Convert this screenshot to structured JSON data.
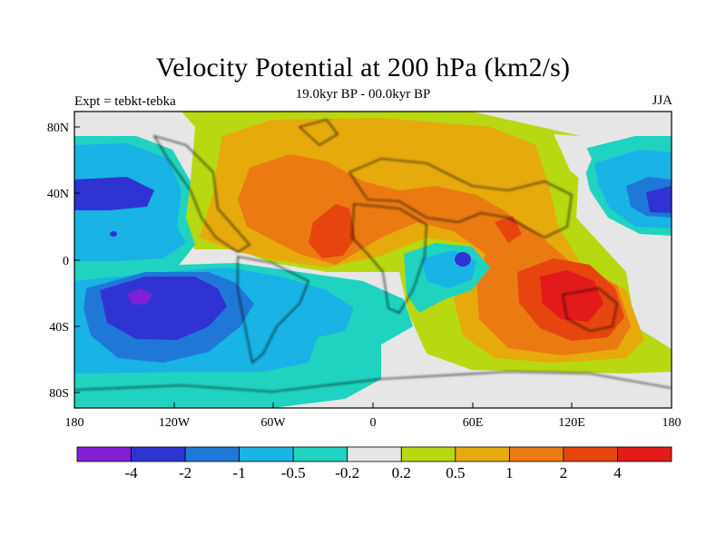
{
  "title": "Velocity Potential at 200 hPa (km2/s)",
  "subtitle_left": "Expt = tebkt-tebka",
  "subtitle_center": "19.0kyr BP - 00.0kyr BP",
  "subtitle_right": "JJA",
  "lat_labels": [
    "80N",
    "40N",
    "0",
    "40S",
    "80S"
  ],
  "lon_labels": [
    "180",
    "120W",
    "60W",
    "0",
    "60E",
    "120E",
    "180"
  ],
  "colorbar": {
    "colors": [
      "#7f1fd6",
      "#2f33d2",
      "#1f78d8",
      "#19b3e6",
      "#1fd3c0",
      "#e6e6e6",
      "#b8d811",
      "#e6aa0d",
      "#eb7a12",
      "#e6450f",
      "#e31a1a"
    ],
    "labels": [
      "-4",
      "-2",
      "-1",
      "-0.5",
      "-0.2",
      "0.2",
      "0.5",
      "1",
      "2",
      "4"
    ]
  },
  "palette": {
    "n4": "#7f1fd6",
    "n2": "#2f33d2",
    "n1": "#1f78d8",
    "n05": "#19b3e6",
    "n02": "#1fd3c0",
    "zero": "#e6e6e6",
    "p02": "#b8d811",
    "p05": "#e6aa0d",
    "p1": "#eb7a12",
    "p2": "#e6450f",
    "p4": "#e31a1a"
  }
}
